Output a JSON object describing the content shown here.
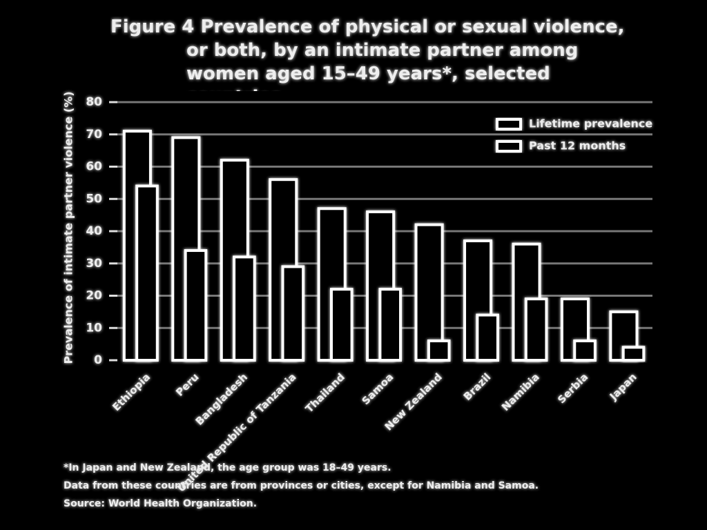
{
  "chart_data": {
    "type": "bar",
    "title": "Figure 4  Prevalence of physical or sexual violence, or both, by an intimate partner among women aged 15–49 years*, selected countries",
    "y_label": "Prevalence of intimate partner violence (%)",
    "categories": [
      "Ethiopia",
      "Peru",
      "Bangladesh",
      "United Republic of Tanzania",
      "Thailand",
      "Samoa",
      "New Zealand",
      "Brazil",
      "Namibia",
      "Serbia",
      "Japan"
    ],
    "series": [
      {
        "name": "Lifetime prevalence",
        "color": "#ffffff",
        "values": [
          71,
          69,
          62,
          56,
          47,
          46,
          42,
          37,
          36,
          19,
          15
        ]
      },
      {
        "name": "Past 12 months",
        "color": "#ffffff",
        "values": [
          54,
          34,
          32,
          29,
          22,
          22,
          6,
          14,
          19,
          6,
          4
        ]
      }
    ],
    "ylim": [
      0,
      80
    ],
    "yticks": [
      0,
      10,
      20,
      30,
      40,
      50,
      60,
      70,
      80
    ],
    "grid": true,
    "legend": "upper right",
    "notes": [
      "*In Japan and New Zealand, the age group was 18–49 years.",
      "Data from these countries are from provinces or cities, except for Namibia and Samoa.",
      "Source: World Health Organization."
    ]
  }
}
